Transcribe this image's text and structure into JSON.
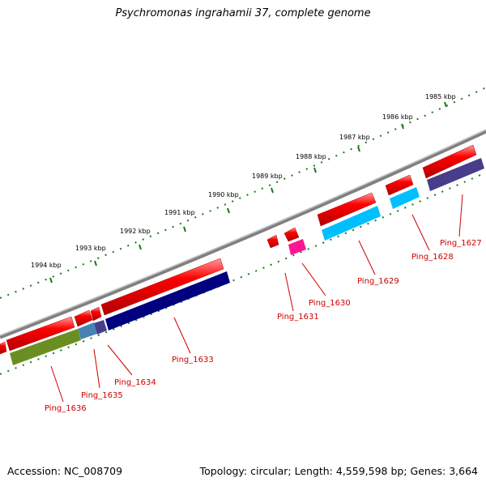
{
  "title": "Psychromonas ingrahamii 37, complete genome",
  "footer": {
    "accession": "Accession: NC_008709",
    "summary": "Topology: circular; Length: 4,559,598 bp; Genes: 3,664"
  },
  "ruler_labels": [
    "1985 kbp",
    "1986 kbp",
    "1987 kbp",
    "1988 kbp",
    "1989 kbp",
    "1990 kbp",
    "1991 kbp",
    "1992 kbp",
    "1993 kbp",
    "1994 kbp"
  ],
  "gene_labels": [
    "Ping_1627",
    "Ping_1628",
    "Ping_1629",
    "Ping_1630",
    "Ping_1631",
    "Ping_1633",
    "Ping_1634",
    "Ping_1635",
    "Ping_1636"
  ],
  "colors": {
    "backbone": "#808080",
    "ruler": "#1a7a1a",
    "gene_arrow": "#ff0000",
    "label": "#cc0000",
    "cds_navy": "#000080",
    "cds_slate": "#483d8b",
    "cds_cyan": "#00bfff",
    "cds_magenta": "#ff1493",
    "cds_olive": "#6b8e23",
    "cds_steel": "#4682b4"
  }
}
